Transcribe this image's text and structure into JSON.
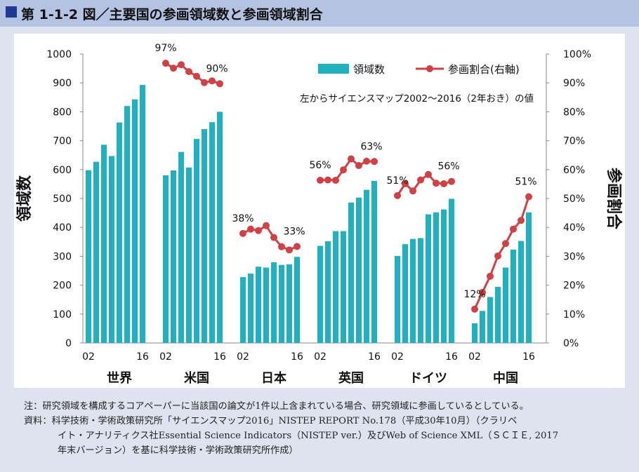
{
  "title": "第 1‐1‐2 図／主要国の参画領域数と参画領域割合",
  "chart_data": {
    "type": "bar+line",
    "ylabel_left": "領域数",
    "ylabel_right": "参画割合",
    "left_axis": {
      "min": 0,
      "max": 1000,
      "ticks": [
        "0",
        "100",
        "200",
        "300",
        "400",
        "500",
        "600",
        "700",
        "800",
        "900",
        "1000"
      ]
    },
    "right_axis": {
      "min": 0,
      "max": 100,
      "ticks": [
        "0%",
        "10%",
        "20%",
        "30%",
        "40%",
        "50%",
        "60%",
        "70%",
        "80%",
        "90%",
        "100%"
      ]
    },
    "legend": {
      "bar": "領域数",
      "line": "参画割合(右軸)",
      "position": "top-right"
    },
    "annotation": "左からサイエンスマップ2002～2016（2年おき）の値",
    "x_start_label": "02",
    "x_end_label": "16",
    "bar_color": "#1fb1c0",
    "line_color": "#d04145",
    "groups": [
      {
        "name": "世界",
        "counts": [
          598,
          627,
          686,
          647,
          763,
          820,
          843,
          893
        ],
        "shares": [],
        "first_label": "",
        "last_label": ""
      },
      {
        "name": "米国",
        "counts": [
          580,
          597,
          661,
          607,
          706,
          740,
          764,
          800
        ],
        "shares": [
          96.8,
          95.1,
          96.3,
          93.9,
          92.3,
          90.1,
          90.7,
          89.7
        ],
        "first_label": "97%",
        "last_label": "90%"
      },
      {
        "name": "日本",
        "counts": [
          228,
          240,
          264,
          261,
          279,
          270,
          272,
          298
        ],
        "shares": [
          37.9,
          39.4,
          38.9,
          40.6,
          36.5,
          33.3,
          32.2,
          33.4
        ],
        "first_label": "38%",
        "last_label": "33%"
      },
      {
        "name": "英国",
        "counts": [
          336,
          352,
          387,
          387,
          486,
          503,
          530,
          561
        ],
        "shares": [
          56.3,
          56.4,
          56.3,
          59.9,
          63.7,
          61.4,
          62.9,
          62.8
        ],
        "first_label": "56%",
        "last_label": "63%"
      },
      {
        "name": "ドイツ",
        "counts": [
          301,
          342,
          360,
          363,
          445,
          452,
          462,
          499
        ],
        "shares": [
          51.0,
          55.1,
          52.6,
          56.4,
          58.3,
          55.3,
          55.1,
          55.9
        ],
        "first_label": "51%",
        "last_label": "56%"
      },
      {
        "name": "中国",
        "counts": [
          68,
          111,
          159,
          194,
          261,
          323,
          353,
          452
        ],
        "shares": [
          11.7,
          17.5,
          23.1,
          30.1,
          34.4,
          39.4,
          42.4,
          50.6
        ],
        "first_label": "12%",
        "last_label": "51%"
      }
    ]
  },
  "notes": {
    "line1": "注：研究領域を構成するコアペーパーに当該国の論文が1件以上含まれている場合、研究領域に参画しているとしている。",
    "line2": "資料：科学技術・学術政策研究所「サイエンスマップ2016」NISTEP REPORT No.178（平成30年10月）（クラリベ",
    "line3": "イト・アナリティクス社Essential Science Indicators（NISTEP ver.）及びWeb of Science XML（ＳＣＩＥ, 2017",
    "line4": "年末バージョン）を基に科学技術・学術政策研究所作成）"
  }
}
